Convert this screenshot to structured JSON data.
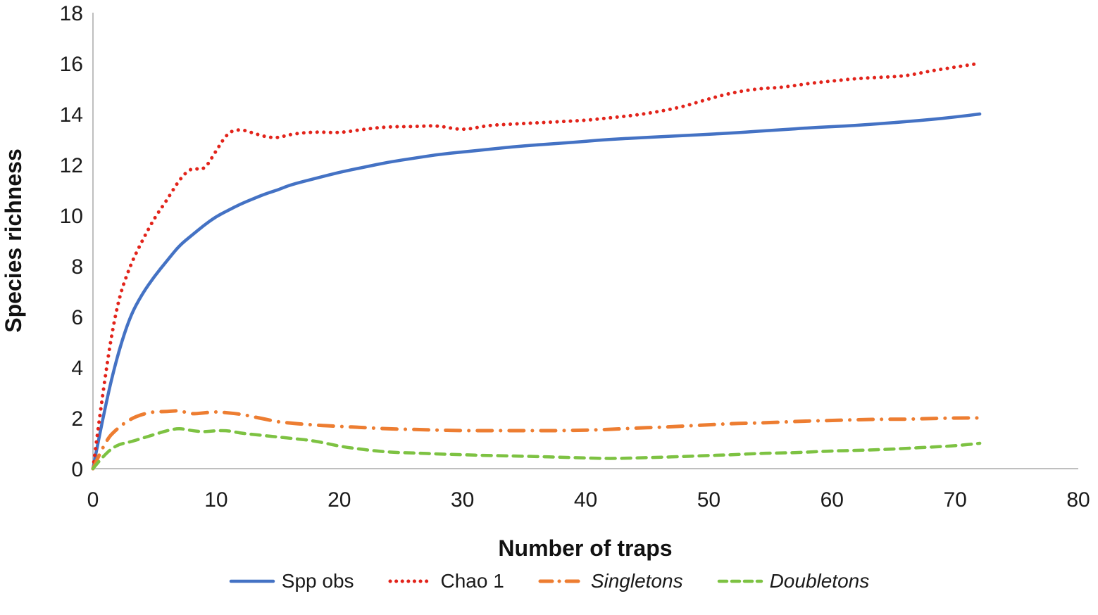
{
  "chart_data": {
    "type": "line",
    "title": "",
    "xlabel": "Number of traps",
    "ylabel": "Species richness",
    "xlim": [
      0,
      80
    ],
    "ylim": [
      0,
      18
    ],
    "xticks": [
      0,
      10,
      20,
      30,
      40,
      50,
      60,
      70,
      80
    ],
    "yticks": [
      0,
      2,
      4,
      6,
      8,
      10,
      12,
      14,
      16,
      18
    ],
    "grid": false,
    "legend_position": "bottom",
    "axis_color": "#bfbfbf",
    "text_color": "#1a1a1a",
    "x": [
      0,
      1,
      2,
      3,
      4,
      5,
      6,
      7,
      8,
      9,
      10,
      11,
      12,
      13,
      14,
      15,
      16,
      18,
      20,
      22,
      24,
      26,
      28,
      30,
      32,
      34,
      36,
      38,
      40,
      42,
      44,
      46,
      48,
      50,
      52,
      54,
      56,
      58,
      60,
      62,
      64,
      66,
      68,
      70,
      72
    ],
    "series": [
      {
        "name": "Spp obs",
        "color": "#4472c4",
        "style": "solid",
        "italic": false,
        "values": [
          0,
          2.5,
          4.5,
          6.0,
          6.9,
          7.6,
          8.2,
          8.8,
          9.2,
          9.6,
          9.95,
          10.2,
          10.45,
          10.65,
          10.85,
          11.0,
          11.2,
          11.45,
          11.7,
          11.9,
          12.1,
          12.25,
          12.4,
          12.5,
          12.6,
          12.7,
          12.78,
          12.85,
          12.92,
          13.0,
          13.05,
          13.1,
          13.15,
          13.2,
          13.25,
          13.32,
          13.38,
          13.45,
          13.5,
          13.55,
          13.62,
          13.7,
          13.78,
          13.88,
          14.0
        ]
      },
      {
        "name": "Chao 1",
        "color": "#e2231a",
        "style": "dotted",
        "italic": false,
        "values": [
          0,
          3.8,
          6.6,
          8.0,
          9.0,
          9.9,
          10.6,
          11.4,
          11.9,
          11.75,
          12.55,
          13.3,
          13.4,
          13.25,
          13.1,
          13.05,
          13.2,
          13.3,
          13.25,
          13.4,
          13.5,
          13.5,
          13.55,
          13.35,
          13.55,
          13.6,
          13.65,
          13.7,
          13.75,
          13.85,
          13.95,
          14.1,
          14.3,
          14.6,
          14.85,
          15.0,
          15.05,
          15.2,
          15.3,
          15.4,
          15.45,
          15.5,
          15.7,
          15.85,
          16.0
        ]
      },
      {
        "name": "Singletons",
        "color": "#ed7d31",
        "style": "dashdot",
        "italic": true,
        "values": [
          0,
          1.1,
          1.6,
          1.95,
          2.15,
          2.25,
          2.25,
          2.3,
          2.15,
          2.2,
          2.25,
          2.2,
          2.15,
          2.05,
          1.95,
          1.85,
          1.8,
          1.72,
          1.67,
          1.62,
          1.57,
          1.55,
          1.52,
          1.5,
          1.5,
          1.5,
          1.5,
          1.5,
          1.52,
          1.55,
          1.6,
          1.63,
          1.68,
          1.73,
          1.78,
          1.8,
          1.84,
          1.88,
          1.9,
          1.93,
          1.95,
          1.95,
          1.98,
          2.0,
          2.0
        ]
      },
      {
        "name": "Doubletons",
        "color": "#7dc242",
        "style": "dashed",
        "italic": true,
        "values": [
          0,
          0.6,
          0.95,
          1.05,
          1.2,
          1.35,
          1.5,
          1.6,
          1.5,
          1.45,
          1.5,
          1.5,
          1.4,
          1.35,
          1.3,
          1.25,
          1.2,
          1.1,
          0.88,
          0.75,
          0.65,
          0.62,
          0.58,
          0.55,
          0.52,
          0.5,
          0.48,
          0.45,
          0.42,
          0.4,
          0.42,
          0.45,
          0.48,
          0.52,
          0.55,
          0.6,
          0.62,
          0.65,
          0.7,
          0.72,
          0.75,
          0.8,
          0.85,
          0.9,
          1.0
        ]
      }
    ]
  }
}
